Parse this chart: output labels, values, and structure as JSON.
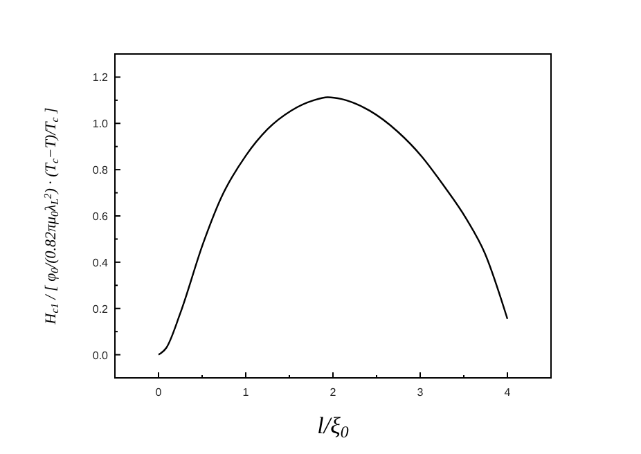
{
  "chart_data": {
    "type": "line",
    "xlabel": "l/ξ$_{0}$",
    "ylabel": "H$_{c1}$ / [ φ$_{0}$/(0.82πμ$_{0}$λ$_{L}$$^{2}$) · (T$_{c}$−T)/T$_{c}$ ]",
    "x": [
      0,
      0.09,
      0.25,
      0.51,
      0.72,
      1.0,
      1.25,
      1.52,
      1.78,
      1.94,
      2.1,
      2.42,
      2.74,
      3.02,
      3.26,
      3.53,
      3.74,
      4.0
    ],
    "series": [
      {
        "color": "#000000",
        "values": [
          0,
          0.03,
          0.18,
          0.48,
          0.68,
          0.86,
          0.975,
          1.055,
          1.1,
          1.113,
          1.105,
          1.055,
          0.965,
          0.856,
          0.736,
          0.587,
          0.44,
          0.155
        ]
      }
    ],
    "xlim": [
      -0.5,
      4.5
    ],
    "ylim": [
      -0.1,
      1.3
    ],
    "xticks": [
      0,
      {
        "value": 0.5,
        "label": null
      },
      1,
      {
        "value": 1.5,
        "label": null
      },
      2,
      {
        "value": 2.5,
        "label": null
      },
      3,
      {
        "value": 3.5,
        "label": null
      },
      4
    ],
    "yticks": [
      {
        "value": 0,
        "label": "0.0"
      },
      {
        "value": 0.1,
        "label": null
      },
      {
        "value": 0.2,
        "label": "0.2"
      },
      {
        "value": 0.3,
        "label": null
      },
      {
        "value": 0.4,
        "label": "0.4"
      },
      {
        "value": 0.5,
        "label": null
      },
      {
        "value": 0.6,
        "label": "0.6"
      },
      {
        "value": 0.7,
        "label": null
      },
      {
        "value": 0.8,
        "label": "0.8"
      },
      {
        "value": 0.9,
        "label": null
      },
      {
        "value": 1.0,
        "label": "1.0"
      },
      {
        "value": 1.1,
        "label": null
      },
      {
        "value": 1.2,
        "label": "1.2"
      }
    ],
    "grid": false,
    "marker": "none",
    "line_style": "solid"
  }
}
